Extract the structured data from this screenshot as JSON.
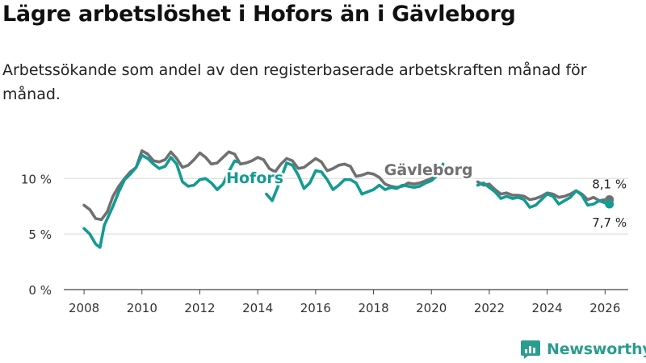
{
  "title": "Lägre arbetslöshet i Hofors än i Gävleborg",
  "subtitle": "Arbetssökande som andel av den registerbaserade arbetskraften månad för månad.",
  "logo_text": "Newsworthy",
  "chart_data": {
    "type": "line",
    "title": "Lägre arbetslöshet i Hofors än i Gävleborg",
    "subtitle": "Arbetssökande som andel av den registerbaserade arbetskraften månad för månad.",
    "xlabel": "",
    "ylabel": "",
    "xlim": [
      2007.3,
      2026.8
    ],
    "ylim": [
      0,
      13
    ],
    "x_ticks": [
      2008,
      2010,
      2012,
      2014,
      2016,
      2018,
      2020,
      2022,
      2024,
      2026
    ],
    "y_ticks": [
      {
        "value": 0,
        "label": "0 %"
      },
      {
        "value": 5,
        "label": "5 %"
      },
      {
        "value": 10,
        "label": "10 %"
      }
    ],
    "grid": "horizontal",
    "legend": "direct labels",
    "series": [
      {
        "name": "Gävleborg",
        "color": "#707070",
        "points": [
          [
            2008.0,
            7.6
          ],
          [
            2008.2,
            7.2
          ],
          [
            2008.4,
            6.4
          ],
          [
            2008.6,
            6.3
          ],
          [
            2008.8,
            7.0
          ],
          [
            2009.0,
            8.4
          ],
          [
            2009.2,
            9.3
          ],
          [
            2009.4,
            10.0
          ],
          [
            2009.6,
            10.6
          ],
          [
            2009.8,
            11.0
          ],
          [
            2010.0,
            12.5
          ],
          [
            2010.2,
            12.2
          ],
          [
            2010.4,
            11.6
          ],
          [
            2010.6,
            11.5
          ],
          [
            2010.8,
            11.7
          ],
          [
            2011.0,
            12.4
          ],
          [
            2011.2,
            11.8
          ],
          [
            2011.4,
            11.0
          ],
          [
            2011.6,
            11.2
          ],
          [
            2011.8,
            11.7
          ],
          [
            2012.0,
            12.3
          ],
          [
            2012.2,
            11.9
          ],
          [
            2012.4,
            11.3
          ],
          [
            2012.6,
            11.4
          ],
          [
            2012.8,
            11.9
          ],
          [
            2013.0,
            12.4
          ],
          [
            2013.2,
            12.2
          ],
          [
            2013.4,
            11.3
          ],
          [
            2013.6,
            11.4
          ],
          [
            2013.8,
            11.6
          ],
          [
            2014.0,
            11.9
          ],
          [
            2014.2,
            11.7
          ],
          [
            2014.4,
            10.9
          ],
          [
            2014.6,
            10.6
          ],
          [
            2014.8,
            11.3
          ],
          [
            2015.0,
            11.8
          ],
          [
            2015.2,
            11.6
          ],
          [
            2015.4,
            10.9
          ],
          [
            2015.6,
            11.0
          ],
          [
            2015.8,
            11.4
          ],
          [
            2016.0,
            11.8
          ],
          [
            2016.2,
            11.5
          ],
          [
            2016.4,
            10.7
          ],
          [
            2016.6,
            10.9
          ],
          [
            2016.8,
            11.2
          ],
          [
            2017.0,
            11.3
          ],
          [
            2017.2,
            11.1
          ],
          [
            2017.4,
            10.2
          ],
          [
            2017.6,
            10.3
          ],
          [
            2017.8,
            10.5
          ],
          [
            2018.0,
            10.4
          ],
          [
            2018.2,
            10.1
          ],
          [
            2018.4,
            9.5
          ],
          [
            2018.6,
            9.3
          ],
          [
            2018.8,
            9.2
          ],
          [
            2019.0,
            9.3
          ],
          [
            2019.2,
            9.6
          ],
          [
            2019.4,
            9.5
          ],
          [
            2019.6,
            9.6
          ],
          [
            2019.8,
            9.8
          ],
          [
            2020.0,
            10.0
          ],
          [
            2020.2,
            10.3
          ],
          [
            2020.4,
            11.0
          ],
          [
            2021.6,
            9.7
          ],
          [
            2021.8,
            9.4
          ],
          [
            2022.0,
            9.5
          ],
          [
            2022.2,
            9.0
          ],
          [
            2022.4,
            8.6
          ],
          [
            2022.6,
            8.7
          ],
          [
            2022.8,
            8.5
          ],
          [
            2023.0,
            8.5
          ],
          [
            2023.2,
            8.4
          ],
          [
            2023.4,
            8.1
          ],
          [
            2023.6,
            8.2
          ],
          [
            2023.8,
            8.4
          ],
          [
            2024.0,
            8.7
          ],
          [
            2024.2,
            8.6
          ],
          [
            2024.4,
            8.3
          ],
          [
            2024.6,
            8.4
          ],
          [
            2024.8,
            8.6
          ],
          [
            2025.0,
            8.9
          ],
          [
            2025.2,
            8.6
          ],
          [
            2025.4,
            8.1
          ],
          [
            2025.6,
            8.3
          ],
          [
            2025.8,
            8.0
          ],
          [
            2026.0,
            8.1
          ],
          [
            2026.15,
            8.1
          ]
        ],
        "last_label": "8,1 %"
      },
      {
        "name": "Hofors",
        "color": "#139b92",
        "points": [
          [
            2008.0,
            5.5
          ],
          [
            2008.2,
            5.0
          ],
          [
            2008.4,
            4.1
          ],
          [
            2008.55,
            3.8
          ],
          [
            2008.7,
            5.8
          ],
          [
            2009.0,
            7.5
          ],
          [
            2009.2,
            8.8
          ],
          [
            2009.4,
            9.9
          ],
          [
            2009.6,
            10.4
          ],
          [
            2009.8,
            11.0
          ],
          [
            2010.0,
            12.1
          ],
          [
            2010.2,
            11.8
          ],
          [
            2010.4,
            11.3
          ],
          [
            2010.6,
            10.9
          ],
          [
            2010.8,
            11.1
          ],
          [
            2011.0,
            11.9
          ],
          [
            2011.2,
            11.3
          ],
          [
            2011.4,
            9.7
          ],
          [
            2011.6,
            9.3
          ],
          [
            2011.8,
            9.4
          ],
          [
            2012.0,
            9.9
          ],
          [
            2012.2,
            10.0
          ],
          [
            2012.4,
            9.6
          ],
          [
            2012.6,
            9.0
          ],
          [
            2012.8,
            9.5
          ],
          [
            2013.0,
            10.6
          ],
          [
            2013.2,
            11.6
          ],
          [
            2013.3,
            11.5
          ],
          [
            2014.3,
            8.6
          ],
          [
            2014.5,
            8.0
          ],
          [
            2014.7,
            9.3
          ],
          [
            2015.0,
            11.4
          ],
          [
            2015.2,
            11.2
          ],
          [
            2015.4,
            10.3
          ],
          [
            2015.6,
            9.1
          ],
          [
            2015.8,
            9.6
          ],
          [
            2016.0,
            10.7
          ],
          [
            2016.2,
            10.6
          ],
          [
            2016.4,
            9.9
          ],
          [
            2016.6,
            9.0
          ],
          [
            2016.8,
            9.4
          ],
          [
            2017.0,
            9.9
          ],
          [
            2017.2,
            9.9
          ],
          [
            2017.4,
            9.6
          ],
          [
            2017.6,
            8.6
          ],
          [
            2017.8,
            8.8
          ],
          [
            2018.0,
            9.0
          ],
          [
            2018.2,
            9.4
          ],
          [
            2018.4,
            9.0
          ],
          [
            2018.6,
            9.2
          ],
          [
            2018.8,
            9.1
          ],
          [
            2019.0,
            9.4
          ],
          [
            2019.2,
            9.3
          ],
          [
            2019.4,
            9.2
          ],
          [
            2019.6,
            9.3
          ],
          [
            2019.8,
            9.6
          ],
          [
            2020.0,
            9.8
          ],
          [
            2020.2,
            10.3
          ],
          [
            2020.4,
            11.3
          ],
          [
            2021.6,
            9.4
          ],
          [
            2021.8,
            9.6
          ],
          [
            2022.0,
            9.2
          ],
          [
            2022.2,
            8.8
          ],
          [
            2022.4,
            8.2
          ],
          [
            2022.6,
            8.4
          ],
          [
            2022.8,
            8.2
          ],
          [
            2023.0,
            8.3
          ],
          [
            2023.2,
            8.1
          ],
          [
            2023.4,
            7.4
          ],
          [
            2023.6,
            7.6
          ],
          [
            2023.8,
            8.1
          ],
          [
            2024.0,
            8.6
          ],
          [
            2024.2,
            8.4
          ],
          [
            2024.4,
            7.7
          ],
          [
            2024.6,
            8.0
          ],
          [
            2024.8,
            8.3
          ],
          [
            2025.0,
            8.9
          ],
          [
            2025.2,
            8.5
          ],
          [
            2025.4,
            7.6
          ],
          [
            2025.6,
            7.7
          ],
          [
            2025.8,
            8.0
          ],
          [
            2026.0,
            7.8
          ],
          [
            2026.15,
            7.7
          ]
        ],
        "last_label": "7,7 %"
      }
    ]
  }
}
